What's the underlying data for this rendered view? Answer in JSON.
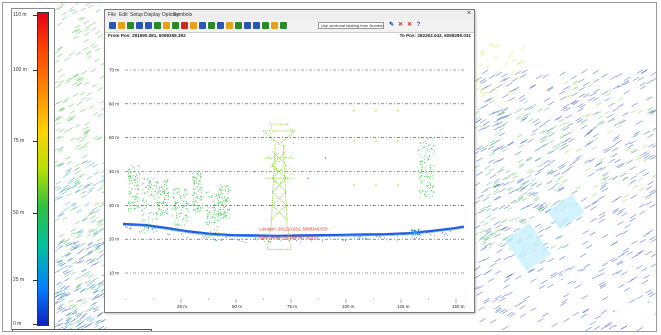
{
  "window": {
    "menu": [
      "File",
      "Edit",
      "Setup",
      "Display Options",
      "Symbols"
    ],
    "close_glyph": "×",
    "from_position": "From Pos: 281990.081, 6098358.392",
    "to_position": "To Pos: 282263.043, 6098289.031",
    "layer_dropdown": "Use sectional tabbing from Number",
    "toolbar_icons": [
      "arrow-left-icon",
      "arrow-right-icon",
      "hand-icon",
      "zoom-in-icon",
      "zoom-out-icon",
      "zoom-extent-icon",
      "layers-icon",
      "table-icon",
      "flag-icon",
      "measure-icon",
      "ruler-icon",
      "line-icon",
      "building-icon",
      "tower-icon",
      "tree-icon",
      "tower-icon",
      "vector-icon",
      "pan-icon",
      "select-icon",
      "pencil-icon",
      "edit-icon",
      "close-x-icon",
      "cross-icon",
      "help-icon"
    ],
    "colors": {
      "toolbar_red": "#cc2a1a",
      "toolbar_green": "#2a8a2a",
      "toolbar_blue": "#2a56b8",
      "toolbar_orange": "#e8a01a"
    }
  },
  "legend": {
    "ticks": [
      "110 m",
      "100 m",
      "75 m",
      "50 m",
      "25 m",
      "0 m"
    ]
  },
  "profile": {
    "y_labels": [
      "70 m",
      "60 m",
      "50 m",
      "40 m",
      "30 m",
      "20 m",
      "10 m"
    ],
    "x_labels": [
      "25 m",
      "50 m",
      "75 m",
      "100 m",
      "125 m",
      "150 m"
    ],
    "location_text": "Location: 281113.032, 6098340.079",
    "dist_text": "Elev: 11.547 m; Dist: 67.103 m",
    "colors": {
      "ground": "#2060e0",
      "vegetation": "#30c040",
      "tower": "#7ed320",
      "annotation": "#e03020",
      "grid": "#444444"
    }
  }
}
